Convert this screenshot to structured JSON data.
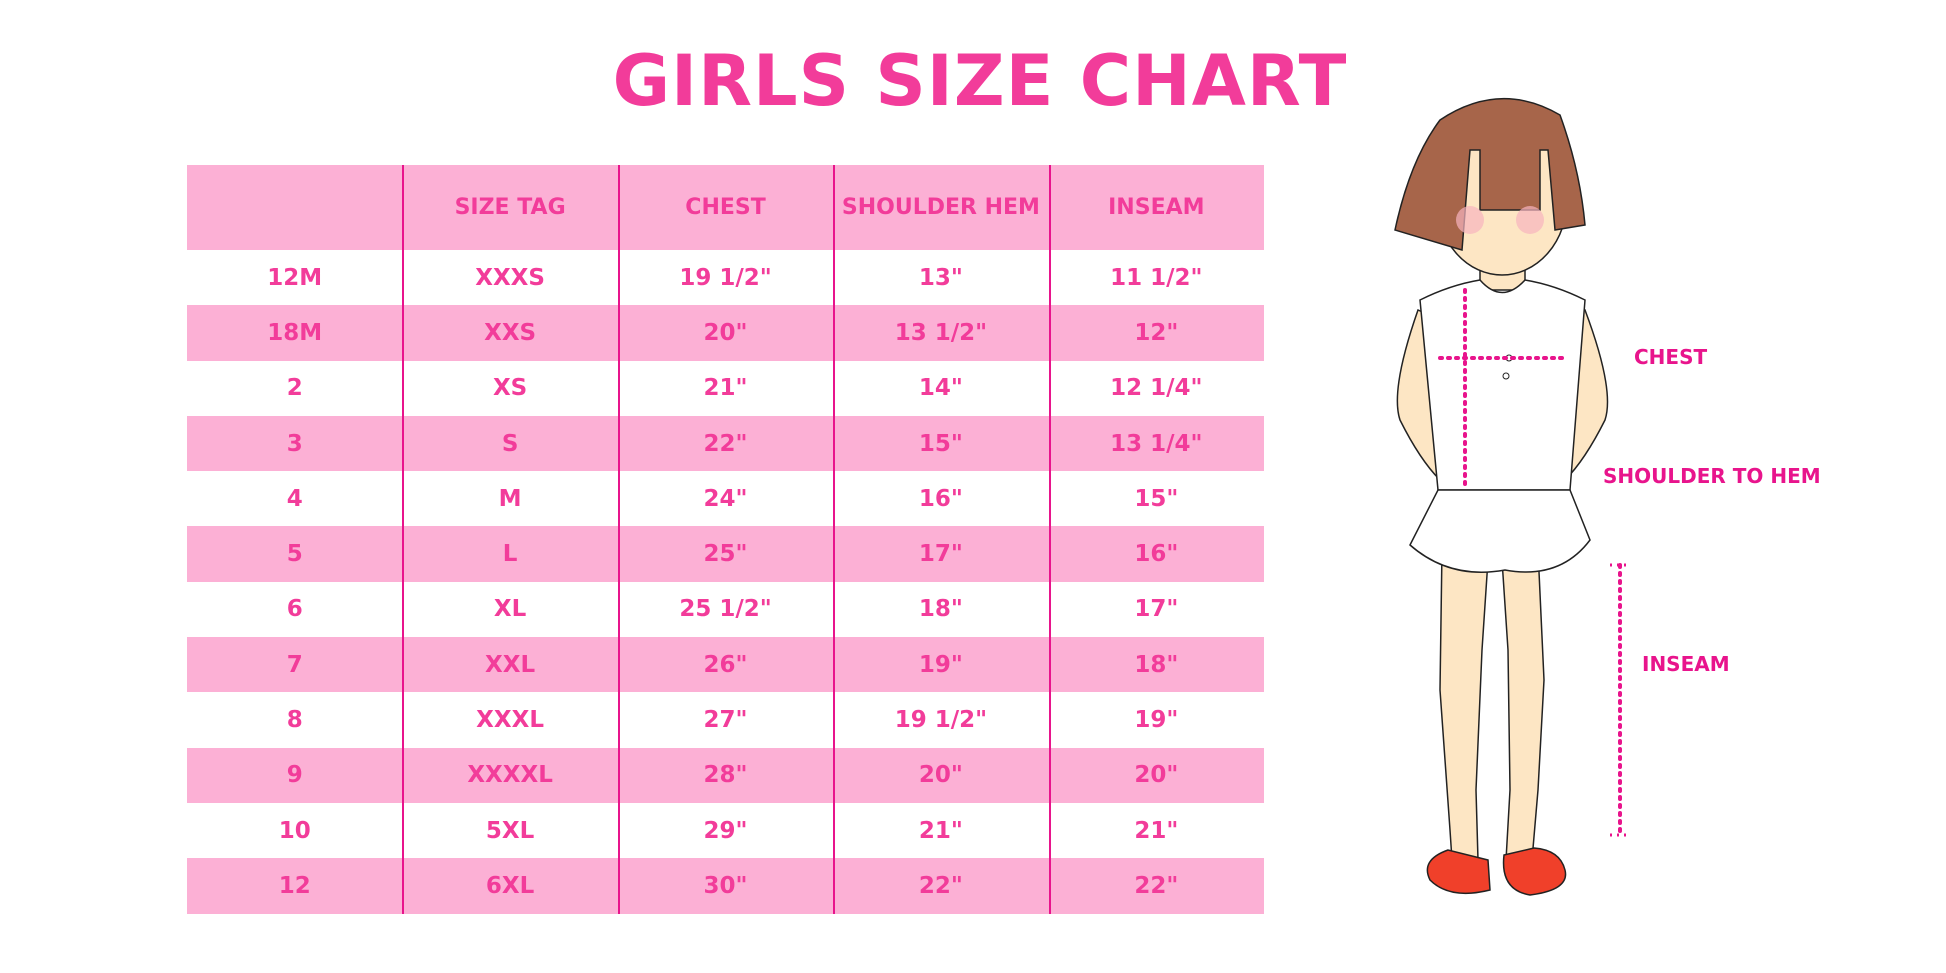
{
  "title": "GIRLS SIZE CHART",
  "chart_data": {
    "type": "table",
    "columns": [
      "",
      "SIZE TAG",
      "CHEST",
      "SHOULDER HEM",
      "INSEAM"
    ],
    "rows": [
      [
        "12M",
        "XXXS",
        "19 1/2\"",
        "13\"",
        "11 1/2\""
      ],
      [
        "18M",
        "XXS",
        "20\"",
        "13 1/2\"",
        "12\""
      ],
      [
        "2",
        "XS",
        "21\"",
        "14\"",
        "12 1/4\""
      ],
      [
        "3",
        "S",
        "22\"",
        "15\"",
        "13 1/4\""
      ],
      [
        "4",
        "M",
        "24\"",
        "16\"",
        "15\""
      ],
      [
        "5",
        "L",
        "25\"",
        "17\"",
        "16\""
      ],
      [
        "6",
        "XL",
        "25 1/2\"",
        "18\"",
        "17\""
      ],
      [
        "7",
        "XXL",
        "26\"",
        "19\"",
        "18\""
      ],
      [
        "8",
        "XXXL",
        "27\"",
        "19 1/2\"",
        "19\""
      ],
      [
        "9",
        "XXXXL",
        "28\"",
        "20\"",
        "20\""
      ],
      [
        "10",
        "5XL",
        "29\"",
        "21\"",
        "21\""
      ],
      [
        "12",
        "6XL",
        "30\"",
        "22\"",
        "22\""
      ]
    ]
  },
  "diagram": {
    "labels": {
      "chest": "CHEST",
      "shoulder_to_hem": "SHOULDER TO HEM",
      "inseam": "INSEAM"
    }
  },
  "colors": {
    "text": "#f23c9a",
    "band": "#fcb0d5",
    "divider": "#e8148c",
    "hair": "#a7654a",
    "skin": "#fde6c4",
    "shoes": "#f0402a"
  }
}
